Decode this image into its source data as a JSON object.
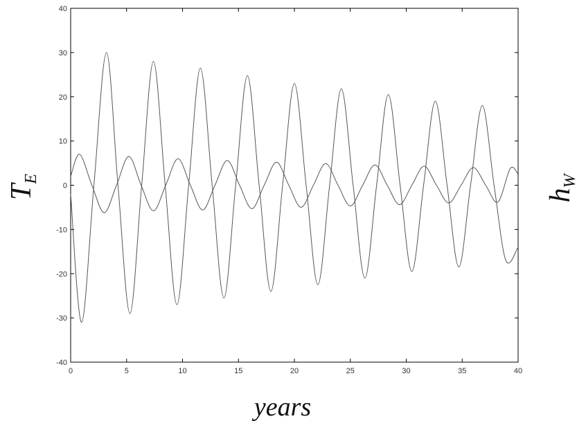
{
  "chart_data": {
    "type": "line",
    "title": "",
    "xlabel": "years",
    "ylabel_left": "T",
    "ylabel_left_sub": "E",
    "ylabel_right": "h",
    "ylabel_right_sub": "W",
    "xlim": [
      0,
      40
    ],
    "ylim": [
      -40,
      40
    ],
    "x_ticks": [
      0,
      5,
      10,
      15,
      20,
      25,
      30,
      35,
      40
    ],
    "y_ticks": [
      -40,
      -30,
      -20,
      -10,
      0,
      10,
      20,
      30,
      40
    ],
    "grid": false,
    "line_color": "#555555",
    "series": [
      {
        "x": [
          0,
          0.98,
          2.08,
          3.2,
          4.23,
          5.3,
          6.35,
          7.4,
          8.45,
          9.5,
          10.55,
          11.6,
          12.65,
          13.7,
          14.75,
          15.8,
          16.85,
          17.9,
          18.95,
          20.0,
          21.05,
          22.1,
          23.15,
          24.2,
          25.25,
          26.3,
          27.35,
          28.4,
          29.45,
          30.5,
          31.55,
          32.6,
          33.65,
          34.7,
          35.75,
          36.8,
          37.85,
          38.9,
          40.0
        ],
        "y": [
          -2,
          -31,
          0,
          30,
          0,
          -29,
          0,
          28,
          0,
          -27,
          0,
          26.5,
          0,
          -25.5,
          0,
          24.8,
          0,
          -24,
          0,
          23,
          0,
          -22.5,
          0,
          21.8,
          0,
          -21,
          0,
          20.5,
          0,
          -19.5,
          0,
          19,
          0,
          -18.5,
          0,
          18,
          0,
          -17,
          -14
        ]
      },
      {
        "x": [
          0,
          0.8,
          1.9,
          3.0,
          4.1,
          5.2,
          6.3,
          7.4,
          8.5,
          9.6,
          10.7,
          11.8,
          12.9,
          14.0,
          15.1,
          16.2,
          17.3,
          18.4,
          19.5,
          20.6,
          21.7,
          22.8,
          23.9,
          25.0,
          26.1,
          27.2,
          28.3,
          29.4,
          30.5,
          31.6,
          32.7,
          33.8,
          34.9,
          36.0,
          37.1,
          38.2,
          39.3,
          40.0
        ],
        "y": [
          2,
          7,
          0,
          -6.2,
          0,
          6.5,
          0,
          -5.8,
          0,
          6.0,
          0,
          -5.6,
          0,
          5.6,
          0,
          -5.3,
          0,
          5.2,
          0,
          -5.0,
          0,
          4.9,
          0,
          -4.7,
          0,
          4.6,
          0,
          -4.4,
          0,
          4.3,
          0,
          -4.0,
          0,
          4.0,
          0,
          -3.8,
          3.8,
          2.5
        ]
      }
    ]
  }
}
